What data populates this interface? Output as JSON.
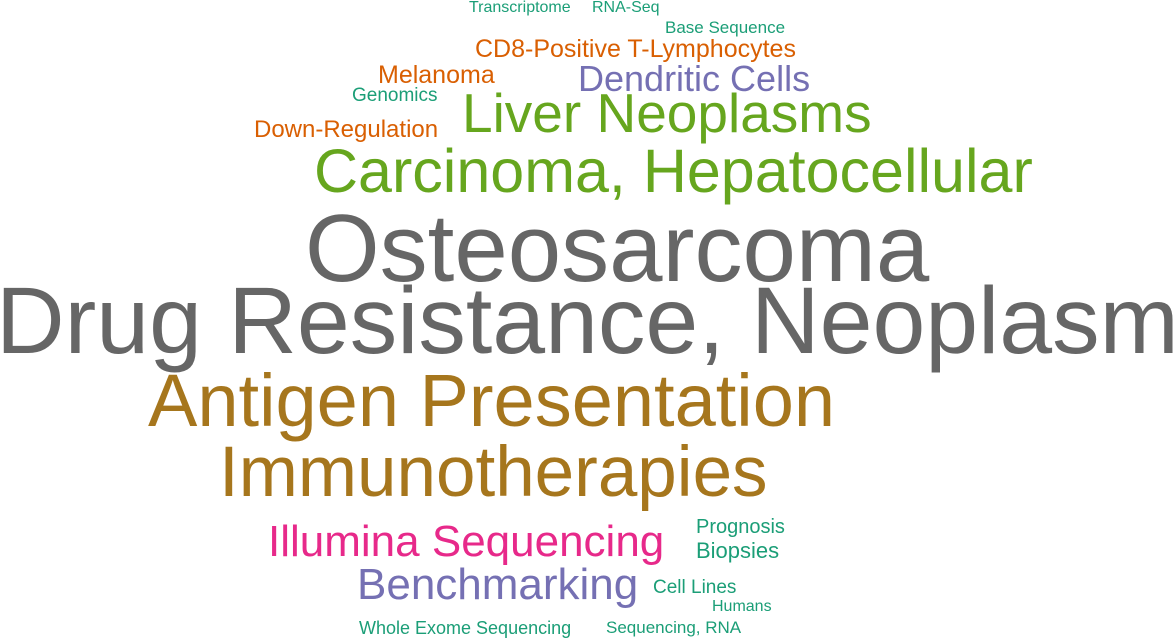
{
  "word_cloud": {
    "colors": {
      "gray": "#666666",
      "green": "#66a61e",
      "gold": "#a6761d",
      "teal": "#1b9e77",
      "orange": "#d95f02",
      "purple": "#7570b3",
      "pink": "#e7298a"
    },
    "words": [
      {
        "text": "Transcriptome",
        "color": "teal"
      },
      {
        "text": "RNA-Seq",
        "color": "teal"
      },
      {
        "text": "Base Sequence",
        "color": "teal"
      },
      {
        "text": "CD8-Positive T-Lymphocytes",
        "color": "orange"
      },
      {
        "text": "Melanoma",
        "color": "orange"
      },
      {
        "text": "Dendritic Cells",
        "color": "purple"
      },
      {
        "text": "Genomics",
        "color": "teal"
      },
      {
        "text": "Down-Regulation",
        "color": "orange"
      },
      {
        "text": "Liver Neoplasms",
        "color": "green"
      },
      {
        "text": "Carcinoma, Hepatocellular",
        "color": "green"
      },
      {
        "text": "Osteosarcoma",
        "color": "gray"
      },
      {
        "text": "Drug Resistance, Neoplasm",
        "color": "gray"
      },
      {
        "text": "Antigen Presentation",
        "color": "gold"
      },
      {
        "text": "Immunotherapies",
        "color": "gold"
      },
      {
        "text": "Illumina Sequencing",
        "color": "pink"
      },
      {
        "text": "Prognosis",
        "color": "teal"
      },
      {
        "text": "Biopsies",
        "color": "teal"
      },
      {
        "text": "Benchmarking",
        "color": "purple"
      },
      {
        "text": "Cell Lines",
        "color": "teal"
      },
      {
        "text": "Humans",
        "color": "teal"
      },
      {
        "text": "Whole Exome Sequencing",
        "color": "teal"
      },
      {
        "text": "Sequencing, RNA",
        "color": "teal"
      }
    ]
  }
}
